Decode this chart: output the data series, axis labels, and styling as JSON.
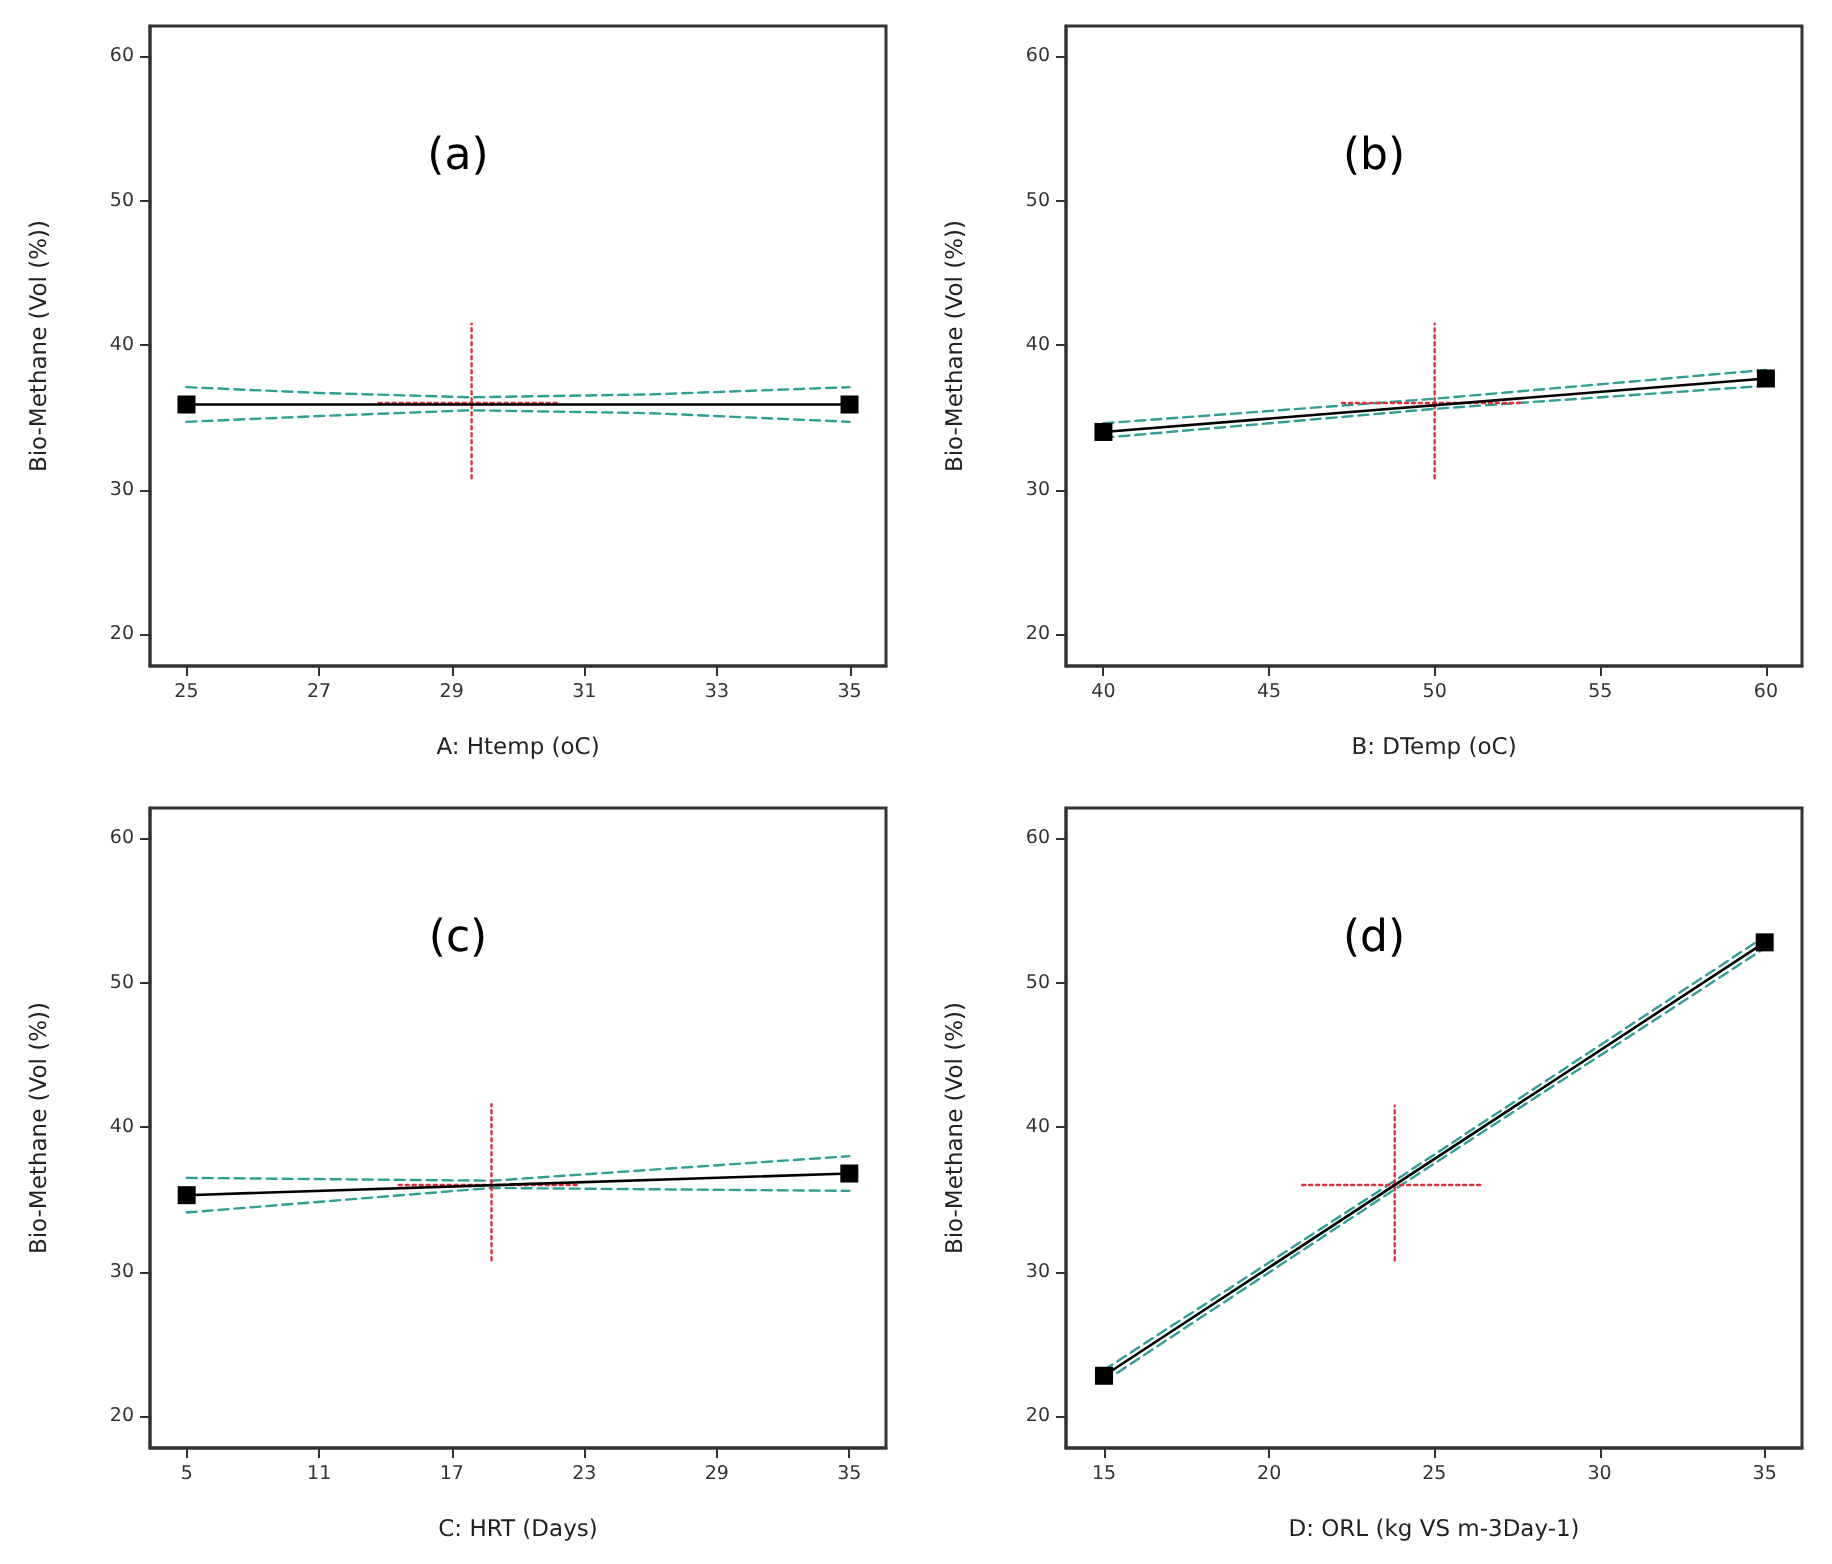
{
  "chart_data": [
    {
      "type": "line",
      "title": "(a)",
      "xlabel": "A: Htemp (oC)",
      "ylabel": "Bio-Methane (Vol (%))",
      "xlim": [
        24.45,
        35.55
      ],
      "xticks": [
        25,
        27,
        29,
        31,
        33,
        35
      ],
      "ylim": [
        17.8,
        62.1
      ],
      "yticks": [
        20,
        30,
        40,
        50,
        60
      ],
      "grid": false,
      "series": [
        {
          "x": [
            25,
            27,
            29.3,
            32,
            35
          ],
          "values": [
            37.1,
            36.7,
            36.4,
            36.6,
            37.1
          ],
          "color": "#2e9e96",
          "marker": "none",
          "line_style": "dashed"
        },
        {
          "x": [
            25,
            27,
            29.3,
            32,
            35
          ],
          "values": [
            34.7,
            35.1,
            35.5,
            35.3,
            34.7
          ],
          "color": "#2e9e96",
          "marker": "none",
          "line_style": "dashed"
        },
        {
          "x": [
            27.9,
            30.6
          ],
          "values": [
            36.0,
            36.0
          ],
          "color": "#e0303a",
          "marker": "none",
          "line_style": "dotted"
        },
        {
          "x": [
            29.3,
            29.3
          ],
          "values": [
            30.8,
            41.5
          ],
          "color": "#e0303a",
          "marker": "none",
          "line_style": "dotted"
        },
        {
          "x": [
            25,
            35
          ],
          "values": [
            35.9,
            35.9
          ],
          "color": "#000000",
          "marker": "square",
          "line_style": "solid"
        }
      ]
    },
    {
      "type": "line",
      "title": "(b)",
      "xlabel": "B: DTemp (oC)",
      "ylabel": "Bio-Methane (Vol (%))",
      "xlim": [
        38.87,
        61.09
      ],
      "xticks": [
        40,
        45,
        50,
        55,
        60
      ],
      "ylim": [
        17.8,
        62.1
      ],
      "yticks": [
        20,
        30,
        40,
        50,
        60
      ],
      "grid": false,
      "series": [
        {
          "x": [
            40,
            50,
            60
          ],
          "values": [
            34.6,
            36.3,
            38.3
          ],
          "color": "#2e9e96",
          "marker": "none",
          "line_style": "dashed"
        },
        {
          "x": [
            40,
            50,
            60
          ],
          "values": [
            33.6,
            35.6,
            37.2
          ],
          "color": "#2e9e96",
          "marker": "none",
          "line_style": "dashed"
        },
        {
          "x": [
            47.2,
            52.6
          ],
          "values": [
            36.0,
            36.0
          ],
          "color": "#e0303a",
          "marker": "none",
          "line_style": "dotted"
        },
        {
          "x": [
            50,
            50
          ],
          "values": [
            30.8,
            41.5
          ],
          "color": "#e0303a",
          "marker": "none",
          "line_style": "dotted"
        },
        {
          "x": [
            40,
            60
          ],
          "values": [
            34.0,
            37.7
          ],
          "color": "#000000",
          "marker": "square",
          "line_style": "solid"
        }
      ]
    },
    {
      "type": "line",
      "title": "(c)",
      "xlabel": "C: HRT (Days)",
      "ylabel": "Bio-Methane (Vol (%))",
      "xlim": [
        3.34,
        36.66
      ],
      "xticks": [
        5,
        11,
        17,
        23,
        29,
        35
      ],
      "ylim": [
        17.8,
        62.1
      ],
      "yticks": [
        20,
        30,
        40,
        50,
        60
      ],
      "grid": false,
      "series": [
        {
          "x": [
            5,
            18.8,
            35
          ],
          "values": [
            36.5,
            36.3,
            38.0
          ],
          "color": "#2e9e96",
          "marker": "none",
          "line_style": "dashed"
        },
        {
          "x": [
            5,
            18.8,
            35
          ],
          "values": [
            34.1,
            35.8,
            35.6
          ],
          "color": "#2e9e96",
          "marker": "none",
          "line_style": "dashed"
        },
        {
          "x": [
            14.6,
            22.8
          ],
          "values": [
            36.0,
            36.0
          ],
          "color": "#e0303a",
          "marker": "none",
          "line_style": "dotted"
        },
        {
          "x": [
            18.8,
            18.8
          ],
          "values": [
            30.8,
            41.6
          ],
          "color": "#e0303a",
          "marker": "none",
          "line_style": "dotted"
        },
        {
          "x": [
            5,
            35
          ],
          "values": [
            35.3,
            36.8
          ],
          "color": "#000000",
          "marker": "square",
          "line_style": "solid"
        }
      ]
    },
    {
      "type": "line",
      "title": "(d)",
      "xlabel": "D: ORL (kg VS m-3Day-1)",
      "ylabel": "Bio-Methane (Vol (%))",
      "xlim": [
        13.85,
        36.13
      ],
      "xticks": [
        15,
        20,
        25,
        30,
        35
      ],
      "ylim": [
        17.8,
        62.1
      ],
      "yticks": [
        20,
        30,
        40,
        50,
        60
      ],
      "grid": false,
      "series": [
        {
          "x": [
            15,
            23.8,
            35
          ],
          "values": [
            23.2,
            36.3,
            53.2
          ],
          "color": "#2e9e96",
          "marker": "none",
          "line_style": "dashed"
        },
        {
          "x": [
            15,
            23.8,
            35
          ],
          "values": [
            22.4,
            35.7,
            52.4
          ],
          "color": "#2e9e96",
          "marker": "none",
          "line_style": "dashed"
        },
        {
          "x": [
            21.0,
            26.5
          ],
          "values": [
            36.0,
            36.0
          ],
          "color": "#e0303a",
          "marker": "none",
          "line_style": "dotted"
        },
        {
          "x": [
            23.8,
            23.8
          ],
          "values": [
            30.8,
            41.5
          ],
          "color": "#e0303a",
          "marker": "none",
          "line_style": "dotted"
        },
        {
          "x": [
            15,
            35
          ],
          "values": [
            22.8,
            52.8
          ],
          "color": "#000000",
          "marker": "square",
          "line_style": "solid"
        }
      ]
    }
  ]
}
